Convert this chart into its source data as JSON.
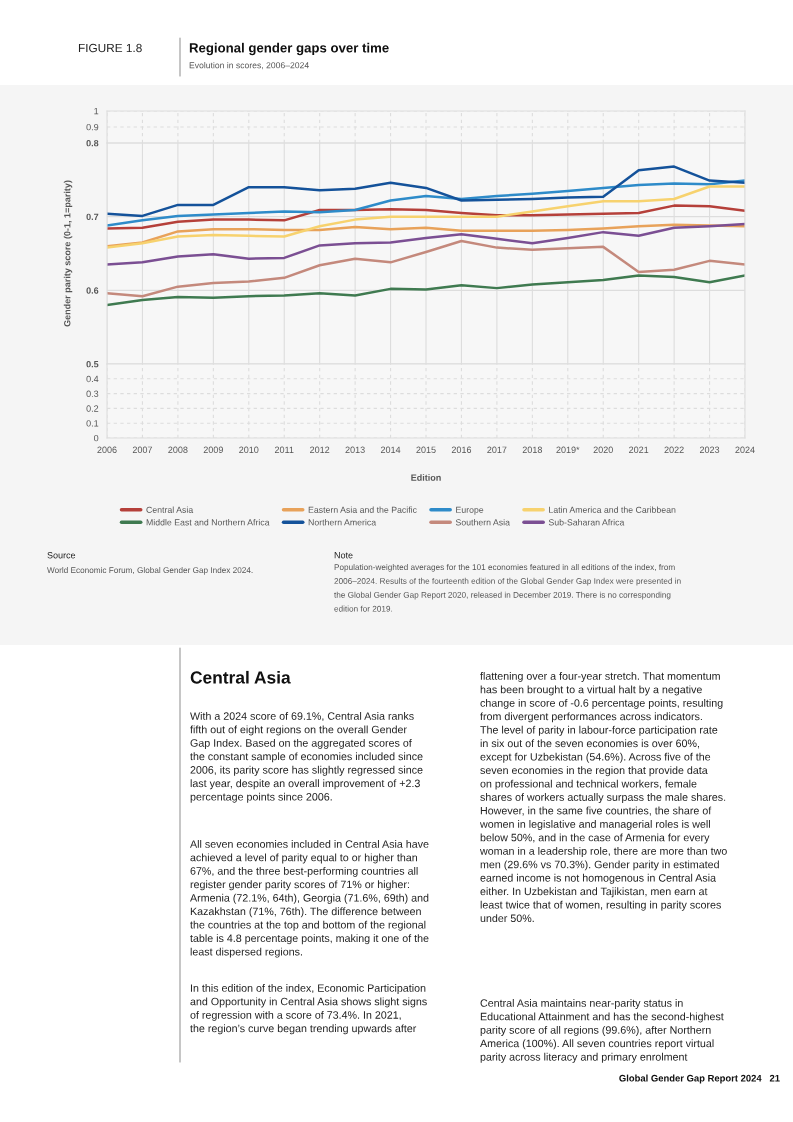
{
  "chart_data": [
    {
      "type": "line",
      "title": "Regional gender gaps over time",
      "subtitle": "Evolution in scores, 2006–2024",
      "categories": [
        null,
        null,
        null,
        null,
        null,
        null,
        null,
        null,
        null,
        null,
        null,
        null,
        null,
        null,
        null,
        null,
        null,
        null,
        null
      ],
      "ylim": [
        0.8,
        1
      ],
      "yticks": [
        0.9,
        1
      ],
      "grid": true,
      "tick_labels": "y"
    },
    {
      "type": "line",
      "ylabel": "Gender parity score (0-1, 1=parity)",
      "categories": [
        null,
        null,
        null,
        null,
        null,
        null,
        null,
        null,
        null,
        null,
        null,
        null,
        null,
        null,
        null,
        null,
        null,
        null,
        null
      ],
      "ylim": [
        0.5,
        0.8
      ],
      "yticks": [
        0.5,
        0.6,
        0.7,
        0.8
      ],
      "grid": true,
      "legend": "bottom",
      "tick_labels": "y",
      "series": [
        {
          "name": "Central Asia",
          "color": "#b5403a",
          "values": [
            0.684,
            0.685,
            0.693,
            0.696,
            0.696,
            0.695,
            0.709,
            0.709,
            0.71,
            0.709,
            0.705,
            0.702,
            0.702,
            0.703,
            0.704,
            0.705,
            0.715,
            0.714,
            0.708
          ]
        },
        {
          "name": "Eastern Asia and the Pacific",
          "color": "#e8a25a",
          "values": [
            0.66,
            0.665,
            0.68,
            0.683,
            0.683,
            0.682,
            0.682,
            0.686,
            0.683,
            0.685,
            0.681,
            0.681,
            0.681,
            0.682,
            0.684,
            0.687,
            0.689,
            0.688,
            0.687
          ]
        },
        {
          "name": "Europe",
          "color": "#2e8bc9",
          "values": [
            0.688,
            0.695,
            0.701,
            0.703,
            0.705,
            0.707,
            0.706,
            0.709,
            0.722,
            0.728,
            0.724,
            0.728,
            0.731,
            0.735,
            0.739,
            0.743,
            0.745,
            0.744,
            0.749
          ]
        },
        {
          "name": "Latin America and the Caribbean",
          "color": "#f7d26e",
          "values": [
            0.658,
            0.664,
            0.673,
            0.675,
            0.674,
            0.673,
            0.687,
            0.696,
            0.7,
            0.7,
            0.7,
            0.7,
            0.707,
            0.714,
            0.721,
            0.721,
            0.724,
            0.741,
            0.741
          ]
        },
        {
          "name": "Middle East and Northern Africa",
          "color": "#3f7a50",
          "values": [
            0.58,
            0.587,
            0.591,
            0.59,
            0.592,
            0.593,
            0.596,
            0.593,
            0.602,
            0.601,
            0.607,
            0.603,
            0.608,
            0.611,
            0.614,
            0.62,
            0.618,
            0.611,
            0.62
          ]
        },
        {
          "name": "Northern America",
          "color": "#14529a",
          "values": [
            0.704,
            0.701,
            0.716,
            0.716,
            0.74,
            0.74,
            0.736,
            0.738,
            0.746,
            0.739,
            0.722,
            0.723,
            0.724,
            0.726,
            0.727,
            0.763,
            0.768,
            0.749,
            0.746
          ]
        },
        {
          "name": "Southern Asia",
          "color": "#c4897c",
          "values": [
            0.596,
            0.592,
            0.605,
            0.61,
            0.612,
            0.617,
            0.634,
            0.643,
            0.638,
            0.652,
            0.667,
            0.658,
            0.655,
            0.657,
            0.659,
            0.625,
            0.628,
            0.64,
            0.635
          ]
        },
        {
          "name": "Sub-Saharan Africa",
          "color": "#7b4f93",
          "values": [
            0.635,
            0.638,
            0.646,
            0.649,
            0.643,
            0.644,
            0.661,
            0.664,
            0.665,
            0.671,
            0.676,
            0.67,
            0.664,
            0.671,
            0.679,
            0.674,
            0.685,
            0.687,
            0.69
          ]
        }
      ],
      "annotations": [
        "FIGURE 1.8",
        "Source",
        "World Economic Forum, Global Gender Gap Index 2024.",
        "Note",
        "Population-weighted averages for the 101 economies featured in all editions of the index, from\n2006–2024. Results of the fourteenth edition of the Global Gender Gap Index were presented in\nthe Global Gender Gap Report 2020, released in December 2019. There is no corresponding\nedition for 2019.",
        "Central Asia",
        "With a 2024 score of 69.1%, Central Asia ranks\nfifth out of eight regions on the overall Gender\nGap Index. Based on the aggregated scores of\nthe constant sample of economies included since\n2006, its parity score has slightly regressed since\nlast year, despite an overall improvement of +2.3\npercentage points since 2006.",
        "All seven economies included in Central Asia have\nachieved a level of parity equal to or higher than\n67%, and the three best-performing countries all\nregister gender parity scores of 71% or higher:\nArmenia (72.1%, 64th), Georgia (71.6%, 69th) and\nKazakhstan (71%, 76th). The difference between\nthe countries at the top and bottom of the regional\ntable is 4.8 percentage points, making it one of the\nleast dispersed regions.",
        "In this edition of the index, Economic Participation\nand Opportunity in Central Asia shows slight signs\nof regression with a score of 73.4%. In 2021,\nthe region’s curve began trending upwards after",
        "flattening over a four-year stretch. That momentum\nhas been brought to a virtual halt by a negative\nchange in score of -0.6 percentage points, resulting\nfrom divergent performances across indicators.\nThe level of parity in labour-force participation rate\nin six out of the seven economies is over 60%,\nexcept for Uzbekistan (54.6%). Across five of the\nseven economies in the region that provide data\non professional and technical workers, female\nshares of workers actually surpass the male shares.\nHowever, in the same five countries, the share of\nwomen in legislative and managerial roles is well\nbelow 50%, and in the case of Armenia for every\nwoman in a leadership role, there are more than two\nmen (29.6% vs 70.3%). Gender parity in estimated\nearned income is not homogenous in Central Asia\neither. In Uzbekistan and Tajikistan, men earn at\nleast twice that of women, resulting in parity scores\nunder 50%.",
        "Central Asia maintains near-parity status in\nEducational Attainment and has the second-highest\nparity score of all regions (99.6%), after Northern\nAmerica (100%). All seven countries report virtual\nparity across literacy and primary enrolment",
        "Global Gender Gap Report 2024   21"
      ]
    },
    {
      "type": "line",
      "xlabel": "Edition",
      "categories": [
        "2006",
        "2007",
        "2008",
        "2009",
        "2010",
        "2011",
        "2012",
        "2013",
        "2014",
        "2015",
        "2016",
        "2017",
        "2018",
        "2019*",
        "2020",
        "2021",
        "2022",
        "2023",
        "2024"
      ],
      "ylim": [
        0,
        0.5
      ],
      "yticks": [
        0,
        0.1,
        0.2,
        0.3,
        0.4
      ],
      "grid": true
    }
  ]
}
